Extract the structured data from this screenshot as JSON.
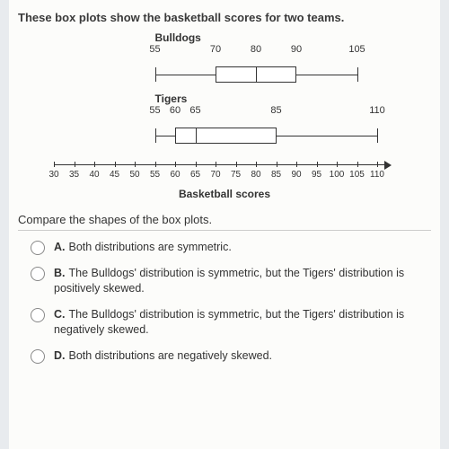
{
  "intro": "These box plots show the basketball scores for two teams.",
  "axis": {
    "min": 30,
    "max": 110,
    "step": 5,
    "pxWidth": 360,
    "title": "Basketball scores"
  },
  "plots": [
    {
      "label": "Bulldogs",
      "min": 55,
      "q1": 70,
      "median": 80,
      "q3": 90,
      "max": 105,
      "valueLabels": [
        55,
        70,
        80,
        90,
        105
      ]
    },
    {
      "label": "Tigers",
      "min": 55,
      "q1": 60,
      "median": 65,
      "q3": 85,
      "max": 110,
      "valueLabels": [
        55,
        60,
        65,
        85,
        110
      ]
    }
  ],
  "question": "Compare the shapes of the box plots.",
  "options": [
    {
      "letter": "A.",
      "text": "Both distributions are symmetric."
    },
    {
      "letter": "B.",
      "text": "The Bulldogs' distribution is symmetric, but the Tigers' distribution is positively skewed."
    },
    {
      "letter": "C.",
      "text": "The Bulldogs' distribution is symmetric, but the Tigers' distribution is negatively skewed."
    },
    {
      "letter": "D.",
      "text": "Both distributions are negatively skewed."
    }
  ],
  "colors": {
    "line": "#333333",
    "box_fill": "#ffffff",
    "page_bg": "#fcfcfa"
  }
}
